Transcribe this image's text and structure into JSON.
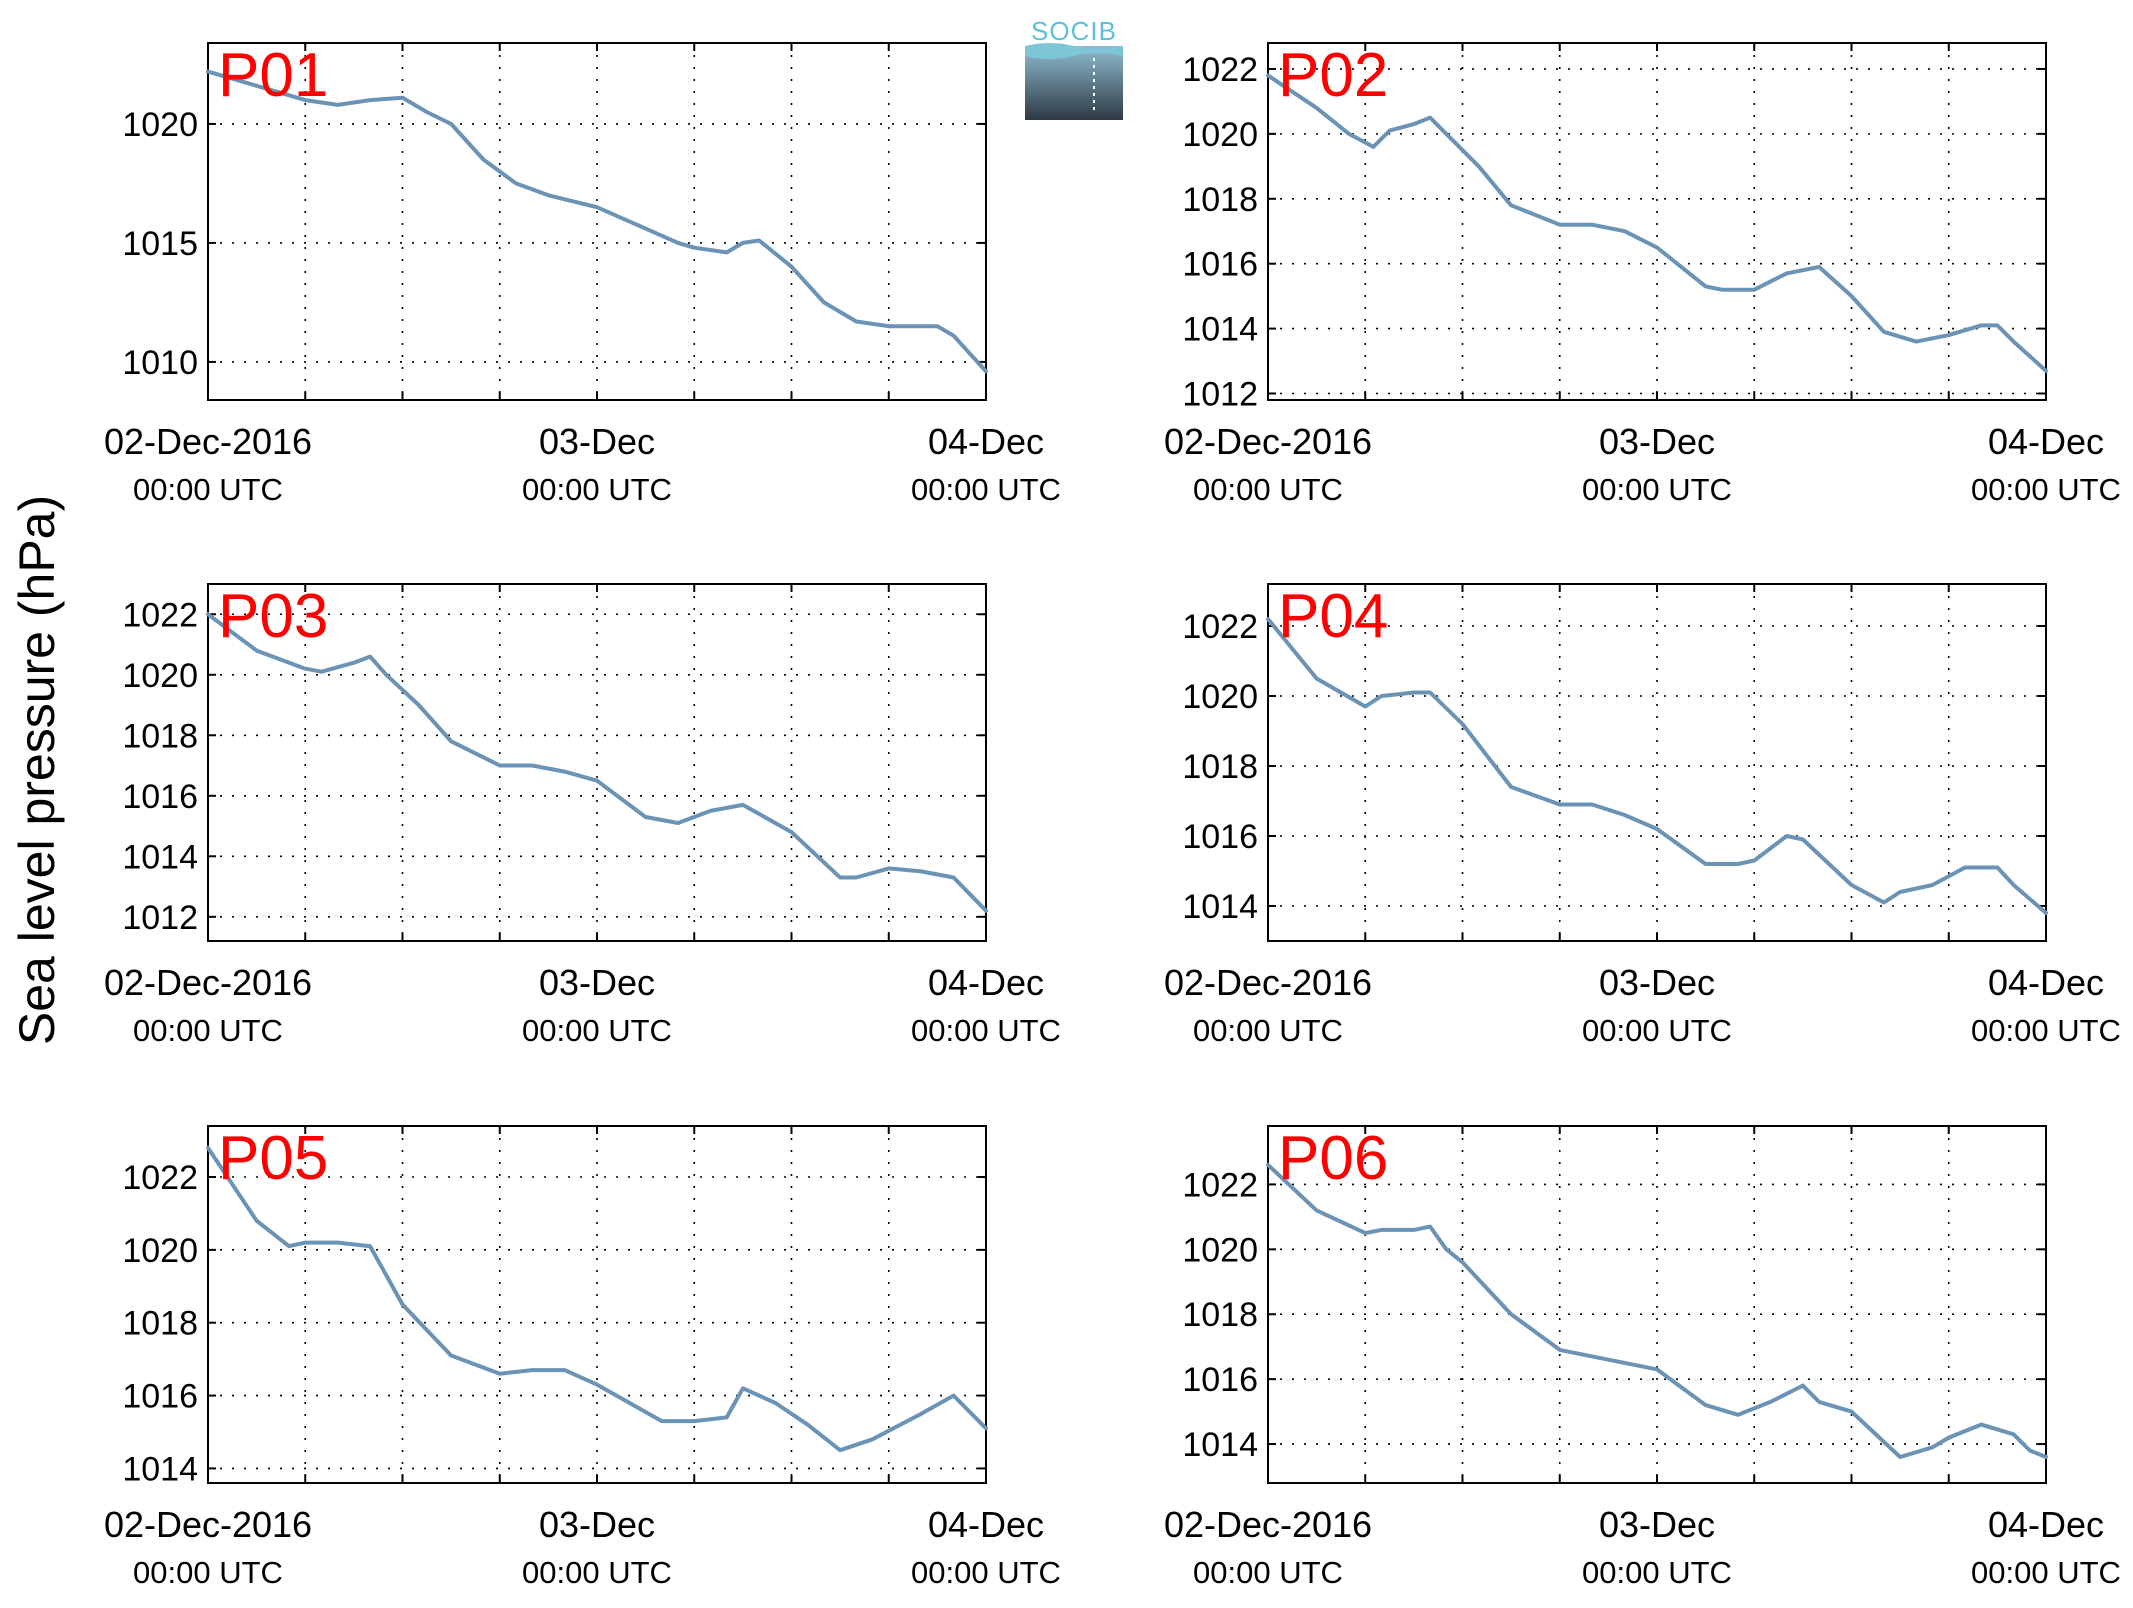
{
  "ylabel": "Sea level pressure (hPa)",
  "logo": {
    "text": "SOCIB"
  },
  "colors": {
    "line": "#6b93b5",
    "panel_label": "#ff0000",
    "axis": "#000000",
    "grid": "#000000"
  },
  "chart_data": [
    {
      "type": "line",
      "panel_label": "P01",
      "x_tick_labels": [
        {
          "date": "02-Dec-2016",
          "time": "00:00 UTC"
        },
        {
          "date": "03-Dec",
          "time": "00:00 UTC"
        },
        {
          "date": "04-Dec",
          "time": "00:00 UTC"
        }
      ],
      "xlim": [
        "2016-12-02T00:00",
        "2016-12-04T00:00"
      ],
      "ylim": [
        1008.4,
        1023.4
      ],
      "yticks": [
        1010,
        1015,
        1020
      ],
      "grid": true,
      "series": [
        {
          "x": [
            "2016-12-02T00:00",
            "2016-12-02T03:00",
            "2016-12-02T06:00",
            "2016-12-02T08:00",
            "2016-12-02T10:00",
            "2016-12-02T12:00",
            "2016-12-02T13:30",
            "2016-12-02T15:00",
            "2016-12-02T17:00",
            "2016-12-02T19:00",
            "2016-12-02T21:00",
            "2016-12-03T00:00",
            "2016-12-03T03:00",
            "2016-12-03T05:00",
            "2016-12-03T06:00",
            "2016-12-03T08:00",
            "2016-12-03T09:00",
            "2016-12-03T10:00",
            "2016-12-03T12:00",
            "2016-12-03T14:00",
            "2016-12-03T16:00",
            "2016-12-03T18:00",
            "2016-12-03T20:00",
            "2016-12-03T21:00",
            "2016-12-03T22:00",
            "2016-12-04T00:00"
          ],
          "values": [
            1022.2,
            1021.6,
            1021.0,
            1020.8,
            1021.0,
            1021.1,
            1020.5,
            1020.0,
            1018.5,
            1017.5,
            1017.0,
            1016.5,
            1015.6,
            1015.0,
            1014.8,
            1014.6,
            1015.0,
            1015.1,
            1014.0,
            1012.5,
            1011.7,
            1011.5,
            1011.5,
            1011.5,
            1011.1,
            1009.6
          ]
        }
      ]
    },
    {
      "type": "line",
      "panel_label": "P02",
      "x_tick_labels": [
        {
          "date": "02-Dec-2016",
          "time": "00:00 UTC"
        },
        {
          "date": "03-Dec",
          "time": "00:00 UTC"
        },
        {
          "date": "04-Dec",
          "time": "00:00 UTC"
        }
      ],
      "xlim": [
        "2016-12-02T00:00",
        "2016-12-04T00:00"
      ],
      "ylim": [
        1011.8,
        1022.8
      ],
      "yticks": [
        1012,
        1014,
        1016,
        1018,
        1020,
        1022
      ],
      "grid": true,
      "series": [
        {
          "x": [
            "2016-12-02T00:00",
            "2016-12-02T03:00",
            "2016-12-02T05:00",
            "2016-12-02T06:30",
            "2016-12-02T07:30",
            "2016-12-02T09:00",
            "2016-12-02T10:00",
            "2016-12-02T11:00",
            "2016-12-02T13:00",
            "2016-12-02T15:00",
            "2016-12-02T18:00",
            "2016-12-02T20:00",
            "2016-12-02T22:00",
            "2016-12-03T00:00",
            "2016-12-03T03:00",
            "2016-12-03T04:00",
            "2016-12-03T06:00",
            "2016-12-03T08:00",
            "2016-12-03T10:00",
            "2016-12-03T12:00",
            "2016-12-03T14:00",
            "2016-12-03T16:00",
            "2016-12-03T18:00",
            "2016-12-03T20:00",
            "2016-12-03T21:00",
            "2016-12-03T22:00",
            "2016-12-04T00:00"
          ],
          "values": [
            1021.8,
            1020.8,
            1020.0,
            1019.6,
            1020.1,
            1020.3,
            1020.5,
            1020.0,
            1019.0,
            1017.8,
            1017.2,
            1017.2,
            1017.0,
            1016.5,
            1015.3,
            1015.2,
            1015.2,
            1015.7,
            1015.9,
            1015.0,
            1013.9,
            1013.6,
            1013.8,
            1014.1,
            1014.1,
            1013.6,
            1012.7
          ]
        }
      ]
    },
    {
      "type": "line",
      "panel_label": "P03",
      "x_tick_labels": [
        {
          "date": "02-Dec-2016",
          "time": "00:00 UTC"
        },
        {
          "date": "03-Dec",
          "time": "00:00 UTC"
        },
        {
          "date": "04-Dec",
          "time": "00:00 UTC"
        }
      ],
      "xlim": [
        "2016-12-02T00:00",
        "2016-12-04T00:00"
      ],
      "ylim": [
        1011.2,
        1023.0
      ],
      "yticks": [
        1012,
        1014,
        1016,
        1018,
        1020,
        1022
      ],
      "grid": true,
      "series": [
        {
          "x": [
            "2016-12-02T00:00",
            "2016-12-02T03:00",
            "2016-12-02T06:00",
            "2016-12-02T07:00",
            "2016-12-02T09:00",
            "2016-12-02T10:00",
            "2016-12-02T11:00",
            "2016-12-02T13:00",
            "2016-12-02T15:00",
            "2016-12-02T18:00",
            "2016-12-02T20:00",
            "2016-12-02T22:00",
            "2016-12-03T00:00",
            "2016-12-03T03:00",
            "2016-12-03T05:00",
            "2016-12-03T07:00",
            "2016-12-03T09:00",
            "2016-12-03T10:00",
            "2016-12-03T12:00",
            "2016-12-03T15:00",
            "2016-12-03T16:00",
            "2016-12-03T18:00",
            "2016-12-03T20:00",
            "2016-12-03T22:00",
            "2016-12-04T00:00"
          ],
          "values": [
            1022.0,
            1020.8,
            1020.2,
            1020.1,
            1020.4,
            1020.6,
            1020.0,
            1019.0,
            1017.8,
            1017.0,
            1017.0,
            1016.8,
            1016.5,
            1015.3,
            1015.1,
            1015.5,
            1015.7,
            1015.4,
            1014.8,
            1013.3,
            1013.3,
            1013.6,
            1013.5,
            1013.3,
            1012.2
          ]
        }
      ]
    },
    {
      "type": "line",
      "panel_label": "P04",
      "x_tick_labels": [
        {
          "date": "02-Dec-2016",
          "time": "00:00 UTC"
        },
        {
          "date": "03-Dec",
          "time": "00:00 UTC"
        },
        {
          "date": "04-Dec",
          "time": "00:00 UTC"
        }
      ],
      "xlim": [
        "2016-12-02T00:00",
        "2016-12-04T00:00"
      ],
      "ylim": [
        1013.0,
        1023.2
      ],
      "yticks": [
        1014,
        1016,
        1018,
        1020,
        1022
      ],
      "grid": true,
      "series": [
        {
          "x": [
            "2016-12-02T00:00",
            "2016-12-02T03:00",
            "2016-12-02T06:00",
            "2016-12-02T07:00",
            "2016-12-02T09:00",
            "2016-12-02T10:00",
            "2016-12-02T12:00",
            "2016-12-02T15:00",
            "2016-12-02T18:00",
            "2016-12-02T20:00",
            "2016-12-02T22:00",
            "2016-12-03T00:00",
            "2016-12-03T03:00",
            "2016-12-03T05:00",
            "2016-12-03T06:00",
            "2016-12-03T08:00",
            "2016-12-03T09:00",
            "2016-12-03T12:00",
            "2016-12-03T14:00",
            "2016-12-03T15:00",
            "2016-12-03T17:00",
            "2016-12-03T19:00",
            "2016-12-03T21:00",
            "2016-12-03T22:00",
            "2016-12-04T00:00"
          ],
          "values": [
            1022.2,
            1020.5,
            1019.7,
            1020.0,
            1020.1,
            1020.1,
            1019.2,
            1017.4,
            1016.9,
            1016.9,
            1016.6,
            1016.2,
            1015.2,
            1015.2,
            1015.3,
            1016.0,
            1015.9,
            1014.6,
            1014.1,
            1014.4,
            1014.6,
            1015.1,
            1015.1,
            1014.6,
            1013.8
          ]
        }
      ]
    },
    {
      "type": "line",
      "panel_label": "P05",
      "x_tick_labels": [
        {
          "date": "02-Dec-2016",
          "time": "00:00 UTC"
        },
        {
          "date": "03-Dec",
          "time": "00:00 UTC"
        },
        {
          "date": "04-Dec",
          "time": "00:00 UTC"
        }
      ],
      "xlim": [
        "2016-12-02T00:00",
        "2016-12-04T00:00"
      ],
      "ylim": [
        1013.6,
        1023.4
      ],
      "yticks": [
        1014,
        1016,
        1018,
        1020,
        1022
      ],
      "grid": true,
      "series": [
        {
          "x": [
            "2016-12-02T00:00",
            "2016-12-02T03:00",
            "2016-12-02T05:00",
            "2016-12-02T06:00",
            "2016-12-02T08:00",
            "2016-12-02T10:00",
            "2016-12-02T12:00",
            "2016-12-02T15:00",
            "2016-12-02T18:00",
            "2016-12-02T20:00",
            "2016-12-02T22:00",
            "2016-12-03T00:00",
            "2016-12-03T02:00",
            "2016-12-03T04:00",
            "2016-12-03T06:00",
            "2016-12-03T08:00",
            "2016-12-03T09:00",
            "2016-12-03T11:00",
            "2016-12-03T13:00",
            "2016-12-03T15:00",
            "2016-12-03T17:00",
            "2016-12-03T20:00",
            "2016-12-03T22:00",
            "2016-12-04T00:00"
          ],
          "values": [
            1022.8,
            1020.8,
            1020.1,
            1020.2,
            1020.2,
            1020.1,
            1018.5,
            1017.1,
            1016.6,
            1016.7,
            1016.7,
            1016.3,
            1015.8,
            1015.3,
            1015.3,
            1015.4,
            1016.2,
            1015.8,
            1015.2,
            1014.5,
            1014.8,
            1015.5,
            1016.0,
            1015.1
          ]
        }
      ]
    },
    {
      "type": "line",
      "panel_label": "P06",
      "x_tick_labels": [
        {
          "date": "02-Dec-2016",
          "time": "00:00 UTC"
        },
        {
          "date": "03-Dec",
          "time": "00:00 UTC"
        },
        {
          "date": "04-Dec",
          "time": "00:00 UTC"
        }
      ],
      "xlim": [
        "2016-12-02T00:00",
        "2016-12-04T00:00"
      ],
      "ylim": [
        1012.8,
        1023.8
      ],
      "yticks": [
        1014,
        1016,
        1018,
        1020,
        1022
      ],
      "grid": true,
      "series": [
        {
          "x": [
            "2016-12-02T00:00",
            "2016-12-02T03:00",
            "2016-12-02T06:00",
            "2016-12-02T07:00",
            "2016-12-02T09:00",
            "2016-12-02T10:00",
            "2016-12-02T11:00",
            "2016-12-02T12:00",
            "2016-12-02T15:00",
            "2016-12-02T18:00",
            "2016-12-02T20:00",
            "2016-12-02T22:00",
            "2016-12-03T00:00",
            "2016-12-03T03:00",
            "2016-12-03T05:00",
            "2016-12-03T07:00",
            "2016-12-03T09:00",
            "2016-12-03T10:00",
            "2016-12-03T12:00",
            "2016-12-03T15:00",
            "2016-12-03T17:00",
            "2016-12-03T18:00",
            "2016-12-03T20:00",
            "2016-12-03T22:00",
            "2016-12-03T23:00",
            "2016-12-04T00:00"
          ],
          "values": [
            1022.6,
            1021.2,
            1020.5,
            1020.6,
            1020.6,
            1020.7,
            1020.0,
            1019.6,
            1018.0,
            1016.9,
            1016.7,
            1016.5,
            1016.3,
            1015.2,
            1014.9,
            1015.3,
            1015.8,
            1015.3,
            1015.0,
            1013.6,
            1013.9,
            1014.2,
            1014.6,
            1014.3,
            1013.8,
            1013.6
          ]
        }
      ]
    }
  ]
}
